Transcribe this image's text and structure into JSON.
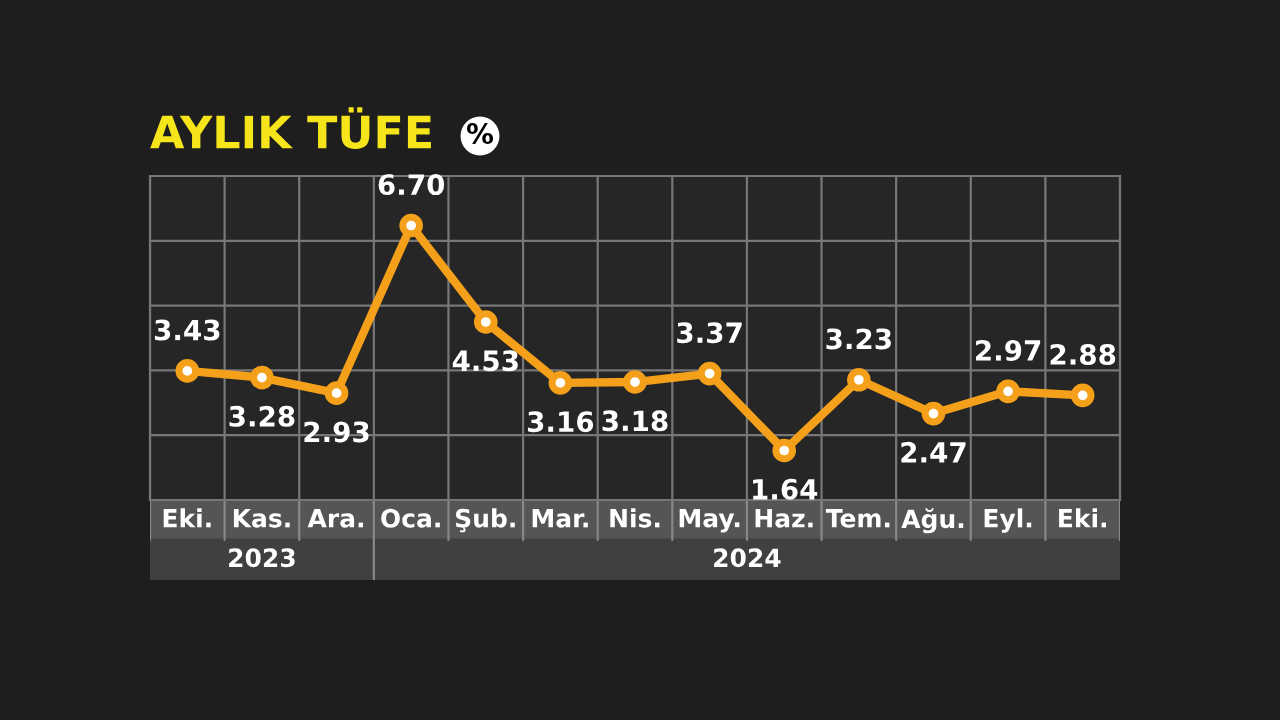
{
  "chart_data": {
    "type": "line",
    "title": "AYLIK TÜFE",
    "subtitle": "%",
    "categories": [
      "Eki.",
      "Kas.",
      "Ara.",
      "Oca.",
      "Şub.",
      "Mar.",
      "Nis.",
      "May.",
      "Haz.",
      "Tem.",
      "Ağu.",
      "Eyl.",
      "Eki."
    ],
    "series": [
      {
        "color": "#f5a01a",
        "values": [
          3.43,
          3.28,
          2.93,
          6.7,
          4.53,
          3.16,
          3.18,
          3.37,
          1.64,
          3.23,
          2.47,
          2.97,
          2.88
        ],
        "value_labels": [
          "3.43",
          "3.28",
          "2.93",
          "6.70",
          "4.53",
          "3.16",
          "3.18",
          "3.37",
          "1.64",
          "3.23",
          "2.47",
          "2.97",
          "2.88"
        ]
      }
    ],
    "marker": "circle",
    "line_style": "solid",
    "grid": true,
    "legend": false,
    "annotations": [
      "2023",
      "2024"
    ]
  }
}
